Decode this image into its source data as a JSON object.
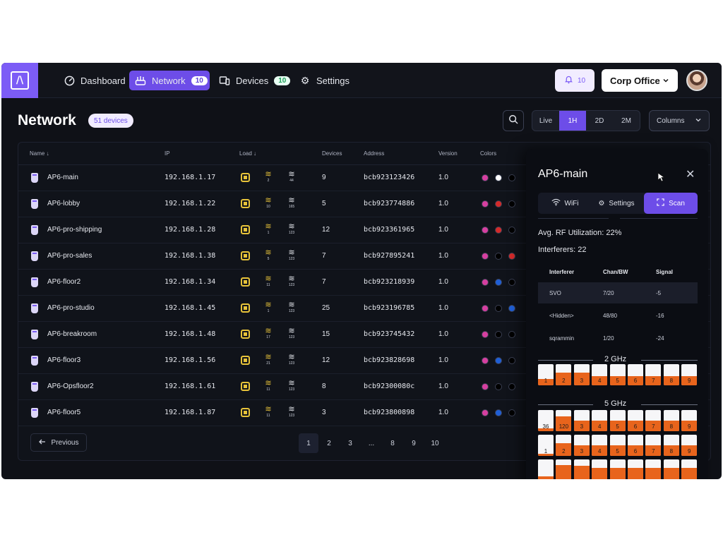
{
  "nav": {
    "items": [
      {
        "label": "Dashboard",
        "icon": "gauge-icon"
      },
      {
        "label": "Network",
        "icon": "router-icon",
        "badge": "10"
      },
      {
        "label": "Devices",
        "icon": "devices-icon",
        "badge": "10"
      },
      {
        "label": "Settings",
        "icon": "gear-icon"
      }
    ],
    "alerts_count": "10",
    "site": "Corp Office"
  },
  "header": {
    "title": "Network",
    "device_count": "51 devices",
    "ranges": [
      "Live",
      "1H",
      "2D",
      "2M"
    ],
    "active_range": "1H",
    "columns_label": "Columns"
  },
  "table": {
    "headers": [
      "Name",
      "IP",
      "Load",
      "Devices",
      "Address",
      "Version",
      "Colors"
    ],
    "rows": [
      {
        "name": "AP6-main",
        "ip": "192.168.1.17",
        "wifi1": "2",
        "wifi2": "44",
        "devices": "9",
        "address": "bcb923123426",
        "version": "1.0"
      },
      {
        "name": "AP6-lobby",
        "ip": "192.168.1.22",
        "wifi1": "10",
        "wifi2": "165",
        "devices": "5",
        "address": "bcb923774886",
        "version": "1.0"
      },
      {
        "name": "AP6-pro-shipping",
        "ip": "192.168.1.28",
        "wifi1": "1",
        "wifi2": "123",
        "devices": "12",
        "address": "bcb923361965",
        "version": "1.0"
      },
      {
        "name": "AP6-pro-sales",
        "ip": "192.168.1.38",
        "wifi1": "5",
        "wifi2": "123",
        "devices": "7",
        "address": "bcb927895241",
        "version": "1.0"
      },
      {
        "name": "AP6-floor2",
        "ip": "192.168.1.34",
        "wifi1": "11",
        "wifi2": "123",
        "devices": "7",
        "address": "bcb923218939",
        "version": "1.0"
      },
      {
        "name": "AP6-pro-studio",
        "ip": "192.168.1.45",
        "wifi1": "1",
        "wifi2": "123",
        "devices": "25",
        "address": "bcb923196785",
        "version": "1.0"
      },
      {
        "name": "AP6-breakroom",
        "ip": "192.168.1.48",
        "wifi1": "17",
        "wifi2": "123",
        "devices": "15",
        "address": "bcb923745432",
        "version": "1.0"
      },
      {
        "name": "AP6-floor3",
        "ip": "192.168.1.56",
        "wifi1": "21",
        "wifi2": "123",
        "devices": "12",
        "address": "bcb923828698",
        "version": "1.0"
      },
      {
        "name": "AP6-Opsfloor2",
        "ip": "192.168.1.61",
        "wifi1": "11",
        "wifi2": "123",
        "devices": "8",
        "address": "bcb92300080c",
        "version": "1.0"
      },
      {
        "name": "AP6-floor5",
        "ip": "192.168.1.87",
        "wifi1": "11",
        "wifi2": "123",
        "devices": "3",
        "address": "bcb923800898",
        "version": "1.0"
      }
    ],
    "row_colors": [
      [
        "#d63fa0",
        "#ffffff",
        "#000000"
      ],
      [
        "#d63fa0",
        "#d42a2a",
        "#000000"
      ],
      [
        "#d63fa0",
        "#d42a2a",
        "#000000"
      ],
      [
        "#d63fa0",
        "#000000",
        "#d42a2a"
      ],
      [
        "#d63fa0",
        "#1f5fd6",
        "#000000"
      ],
      [
        "#d63fa0",
        "#000000",
        "#1f5fd6"
      ],
      [
        "#d63fa0",
        "#000000",
        "#000000"
      ],
      [
        "#d63fa0",
        "#1f5fd6",
        "#000000"
      ],
      [
        "#d63fa0",
        "#000000",
        "#000000"
      ],
      [
        "#d63fa0",
        "#1f5fd6",
        "#000000"
      ]
    ]
  },
  "pagination": {
    "previous": "Previous",
    "pages": [
      "1",
      "2",
      "3",
      "...",
      "8",
      "9",
      "10"
    ],
    "current": "1"
  },
  "panel": {
    "title": "AP6-main",
    "tabs": [
      "WiFi",
      "Settings",
      "Scan"
    ],
    "active_tab": "Scan",
    "avg_rf": "Avg. RF Utilization: 22%",
    "interferers_count": "Interferers: 22",
    "interferer_headers": [
      "Interferer",
      "Chan/BW",
      "Signal"
    ],
    "interferers": [
      {
        "name": "SVO",
        "chan": "7/20",
        "signal": "-5"
      },
      {
        "name": "<Hidden>",
        "chan": "48/80",
        "signal": "-16"
      },
      {
        "name": "sqrammin",
        "chan": "1/20",
        "signal": "-24"
      }
    ],
    "band_24": {
      "label": "2 GHz",
      "channels": [
        "1",
        "2",
        "3",
        "4",
        "5",
        "6",
        "7",
        "8",
        "9"
      ],
      "fill": [
        0.3,
        0.6,
        0.6,
        0.45,
        0.45,
        0.45,
        0.45,
        0.45,
        0.45
      ]
    },
    "band_5": {
      "label": "5 GHz",
      "rows": [
        {
          "channels": [
            "36",
            "120",
            "3",
            "4",
            "5",
            "6",
            "7",
            "8",
            "9"
          ],
          "fill": [
            0.15,
            0.7,
            0.5,
            0.5,
            0.5,
            0.5,
            0.5,
            0.5,
            0.5
          ]
        },
        {
          "channels": [
            "1",
            "2",
            "3",
            "4",
            "5",
            "6",
            "7",
            "8",
            "9"
          ],
          "fill": [
            0.1,
            0.6,
            0.5,
            0.5,
            0.5,
            0.5,
            0.5,
            0.5,
            0.5
          ]
        },
        {
          "channels": [
            "",
            "",
            "",
            "",
            "",
            "",
            "",
            "",
            ""
          ],
          "fill": [
            0.2,
            0.75,
            0.7,
            0.6,
            0.6,
            0.6,
            0.6,
            0.6,
            0.6
          ]
        }
      ]
    }
  }
}
